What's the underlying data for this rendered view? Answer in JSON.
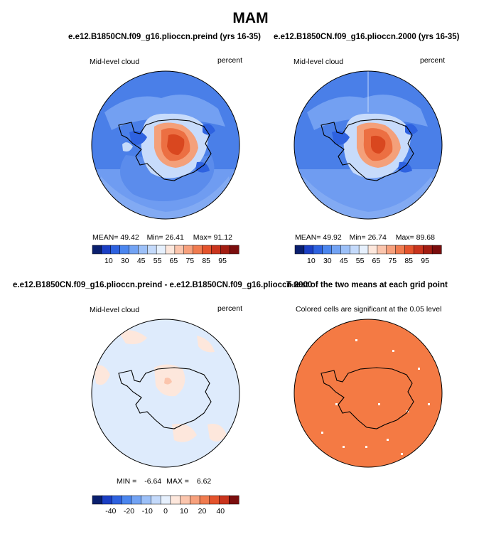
{
  "figure": {
    "title": "MAM",
    "panel1_title": "e.e12.B1850CN.f09_g16.plioccn.preind (yrs 16-35)",
    "panel2_title": "e.e12.B1850CN.f09_g16.plioccn.2000 (yrs 16-35)",
    "diff_title": "e.e12.B1850CN.f09_g16.plioccn.preind - e.e12.B1850CN.f09_g16.plioccn.2000",
    "ttest_title": "T-test of the two means at each grid point"
  },
  "chart_data": [
    {
      "type": "heatmap",
      "title": "e.e12.B1850CN.f09_g16.plioccn.preind (yrs 16-35)",
      "variable": "Mid-level cloud",
      "units": "percent",
      "stats": {
        "mean_label": "MEAN=",
        "mean": "49.42",
        "min_label": "Min=",
        "min": "26.41",
        "max_label": "Max=",
        "max": "91.12"
      },
      "colorbar_ticks": [
        "10",
        "30",
        "45",
        "55",
        "65",
        "75",
        "85",
        "95"
      ],
      "colorbar_colors": [
        "#0a1f6e",
        "#1b3fc4",
        "#2e62e0",
        "#4b86ef",
        "#72a3f4",
        "#9cc0f8",
        "#c4dafb",
        "#e6f0fd",
        "#fde7dc",
        "#fbc5ad",
        "#f7a07c",
        "#f07b4f",
        "#e4532c",
        "#c9341d",
        "#a31d12",
        "#7b0d0d"
      ]
    },
    {
      "type": "heatmap",
      "title": "e.e12.B1850CN.f09_g16.plioccn.2000 (yrs 16-35)",
      "variable": "Mid-level cloud",
      "units": "percent",
      "stats": {
        "mean_label": "MEAN=",
        "mean": "49.92",
        "min_label": "Min=",
        "min": "26.74",
        "max_label": "Max=",
        "max": "89.68"
      },
      "colorbar_ticks": [
        "10",
        "30",
        "45",
        "55",
        "65",
        "75",
        "85",
        "95"
      ],
      "colorbar_colors": [
        "#0a1f6e",
        "#1b3fc4",
        "#2e62e0",
        "#4b86ef",
        "#72a3f4",
        "#9cc0f8",
        "#c4dafb",
        "#e6f0fd",
        "#fde7dc",
        "#fbc5ad",
        "#f7a07c",
        "#f07b4f",
        "#e4532c",
        "#c9341d",
        "#a31d12",
        "#7b0d0d"
      ]
    },
    {
      "type": "heatmap",
      "title": "e.e12.B1850CN.f09_g16.plioccn.preind - e.e12.B1850CN.f09_g16.plioccn.2000",
      "variable": "Mid-level cloud",
      "units": "percent",
      "stats": {
        "min_label": "MIN =",
        "min": "-6.64",
        "max_label": "MAX =",
        "max": "6.62"
      },
      "colorbar_ticks": [
        "-40",
        "-20",
        "-10",
        "0",
        "10",
        "20",
        "40"
      ],
      "colorbar_colors": [
        "#0a1f6e",
        "#1b3fc4",
        "#2e62e0",
        "#4b86ef",
        "#72a3f4",
        "#9cc0f8",
        "#c4dafb",
        "#e6f0fd",
        "#fde7dc",
        "#fbc5ad",
        "#f7a07c",
        "#f07b4f",
        "#e4532c",
        "#c9341d",
        "#7b0d0d"
      ]
    },
    {
      "type": "heatmap",
      "title": "T-test of the two means at each grid point",
      "subtitle": "Colored cells are significant at the 0.05 level",
      "fill_color": "#f47a44"
    }
  ]
}
